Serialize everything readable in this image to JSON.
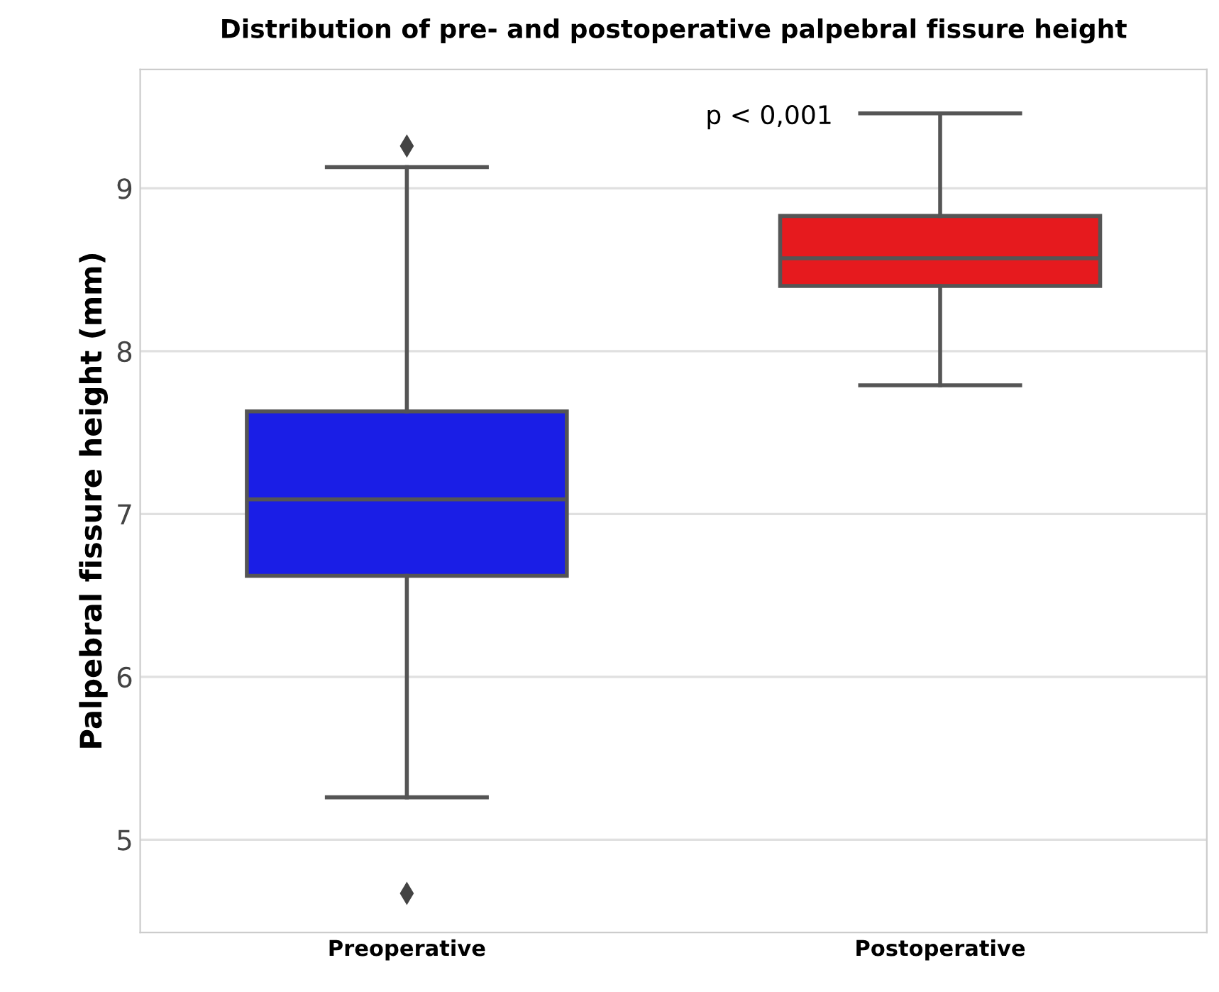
{
  "chart_data": {
    "type": "box",
    "title": "Distribution of pre- and postoperative palpebral fissure height",
    "ylabel": "Palpebral fissure height (mm)",
    "categories": [
      "Preoperative",
      "Postoperative"
    ],
    "boxes": [
      {
        "low": 5.26,
        "q1": 6.62,
        "median": 7.09,
        "q3": 7.63,
        "high": 9.13,
        "outliers": [
          9.26,
          4.67
        ]
      },
      {
        "low": 7.79,
        "q1": 8.4,
        "median": 8.57,
        "q3": 8.83,
        "high": 9.46
      }
    ],
    "colors": [
      "#1a1ee6",
      "#e61a1e"
    ],
    "ylim": [
      4.43,
      9.73
    ],
    "yticks": [
      5,
      6,
      7,
      8,
      9
    ],
    "grid": "y",
    "annotations": [
      "p < 0,001"
    ]
  }
}
